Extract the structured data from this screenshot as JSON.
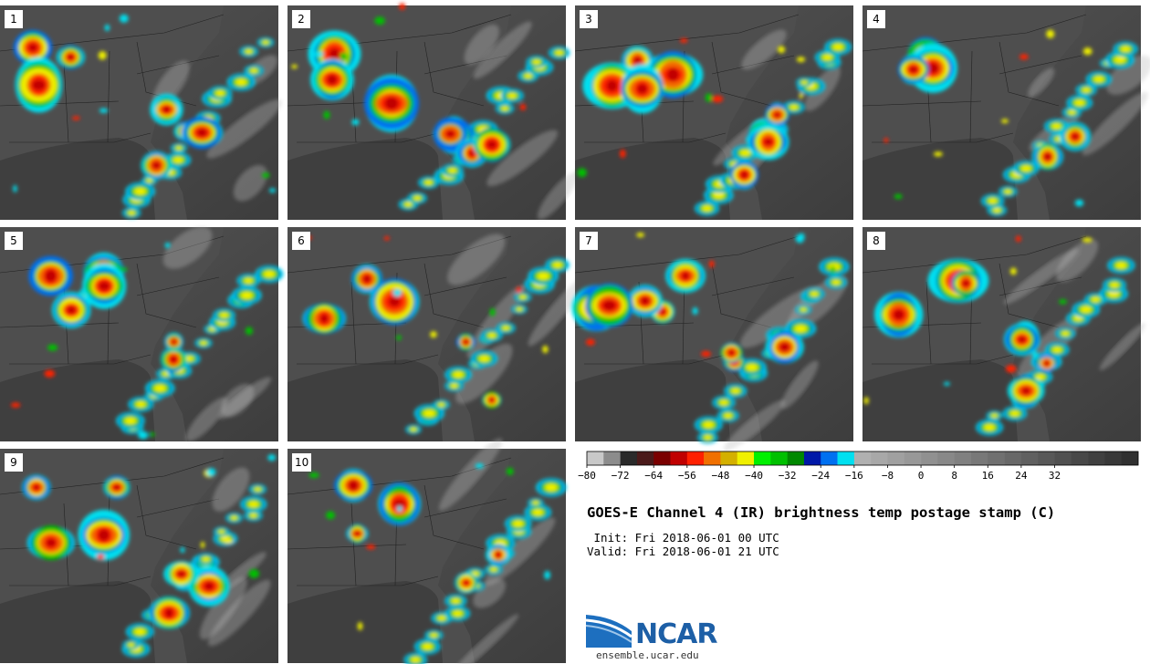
{
  "panels": [
    {
      "label": "1"
    },
    {
      "label": "2"
    },
    {
      "label": "3"
    },
    {
      "label": "4"
    },
    {
      "label": "5"
    },
    {
      "label": "6"
    },
    {
      "label": "7"
    },
    {
      "label": "8"
    },
    {
      "label": "9"
    },
    {
      "label": "10"
    }
  ],
  "colorbar": {
    "colors": [
      "#c8c8c8",
      "#8c8c8c",
      "#2a2a2a",
      "#4a1a1a",
      "#7a0000",
      "#c00000",
      "#ff2000",
      "#f07000",
      "#d4b000",
      "#f0f000",
      "#00f000",
      "#00c000",
      "#008800",
      "#0018a8",
      "#0070f0",
      "#00e0f0",
      "#b0b0b0",
      "#a8a8a8",
      "#a0a0a0",
      "#989898",
      "#909090",
      "#888888",
      "#808080",
      "#787878",
      "#707070",
      "#686868",
      "#606060",
      "#585858",
      "#505050",
      "#484848",
      "#404040",
      "#383838",
      "#303030"
    ],
    "tick_labels": [
      "−80",
      "−72",
      "−64",
      "−56",
      "−48",
      "−40",
      "−32",
      "−24",
      "−16",
      "−8",
      "0",
      "8",
      "16",
      "24",
      "32"
    ]
  },
  "title": "GOES-E Channel 4 (IR) brightness temp postage stamp (C)",
  "init": " Init: Fri 2018-06-01 00 UTC",
  "valid": "Valid: Fri 2018-06-01 21 UTC",
  "logo": {
    "word": "NCAR",
    "url": "ensemble.ucar.edu"
  }
}
